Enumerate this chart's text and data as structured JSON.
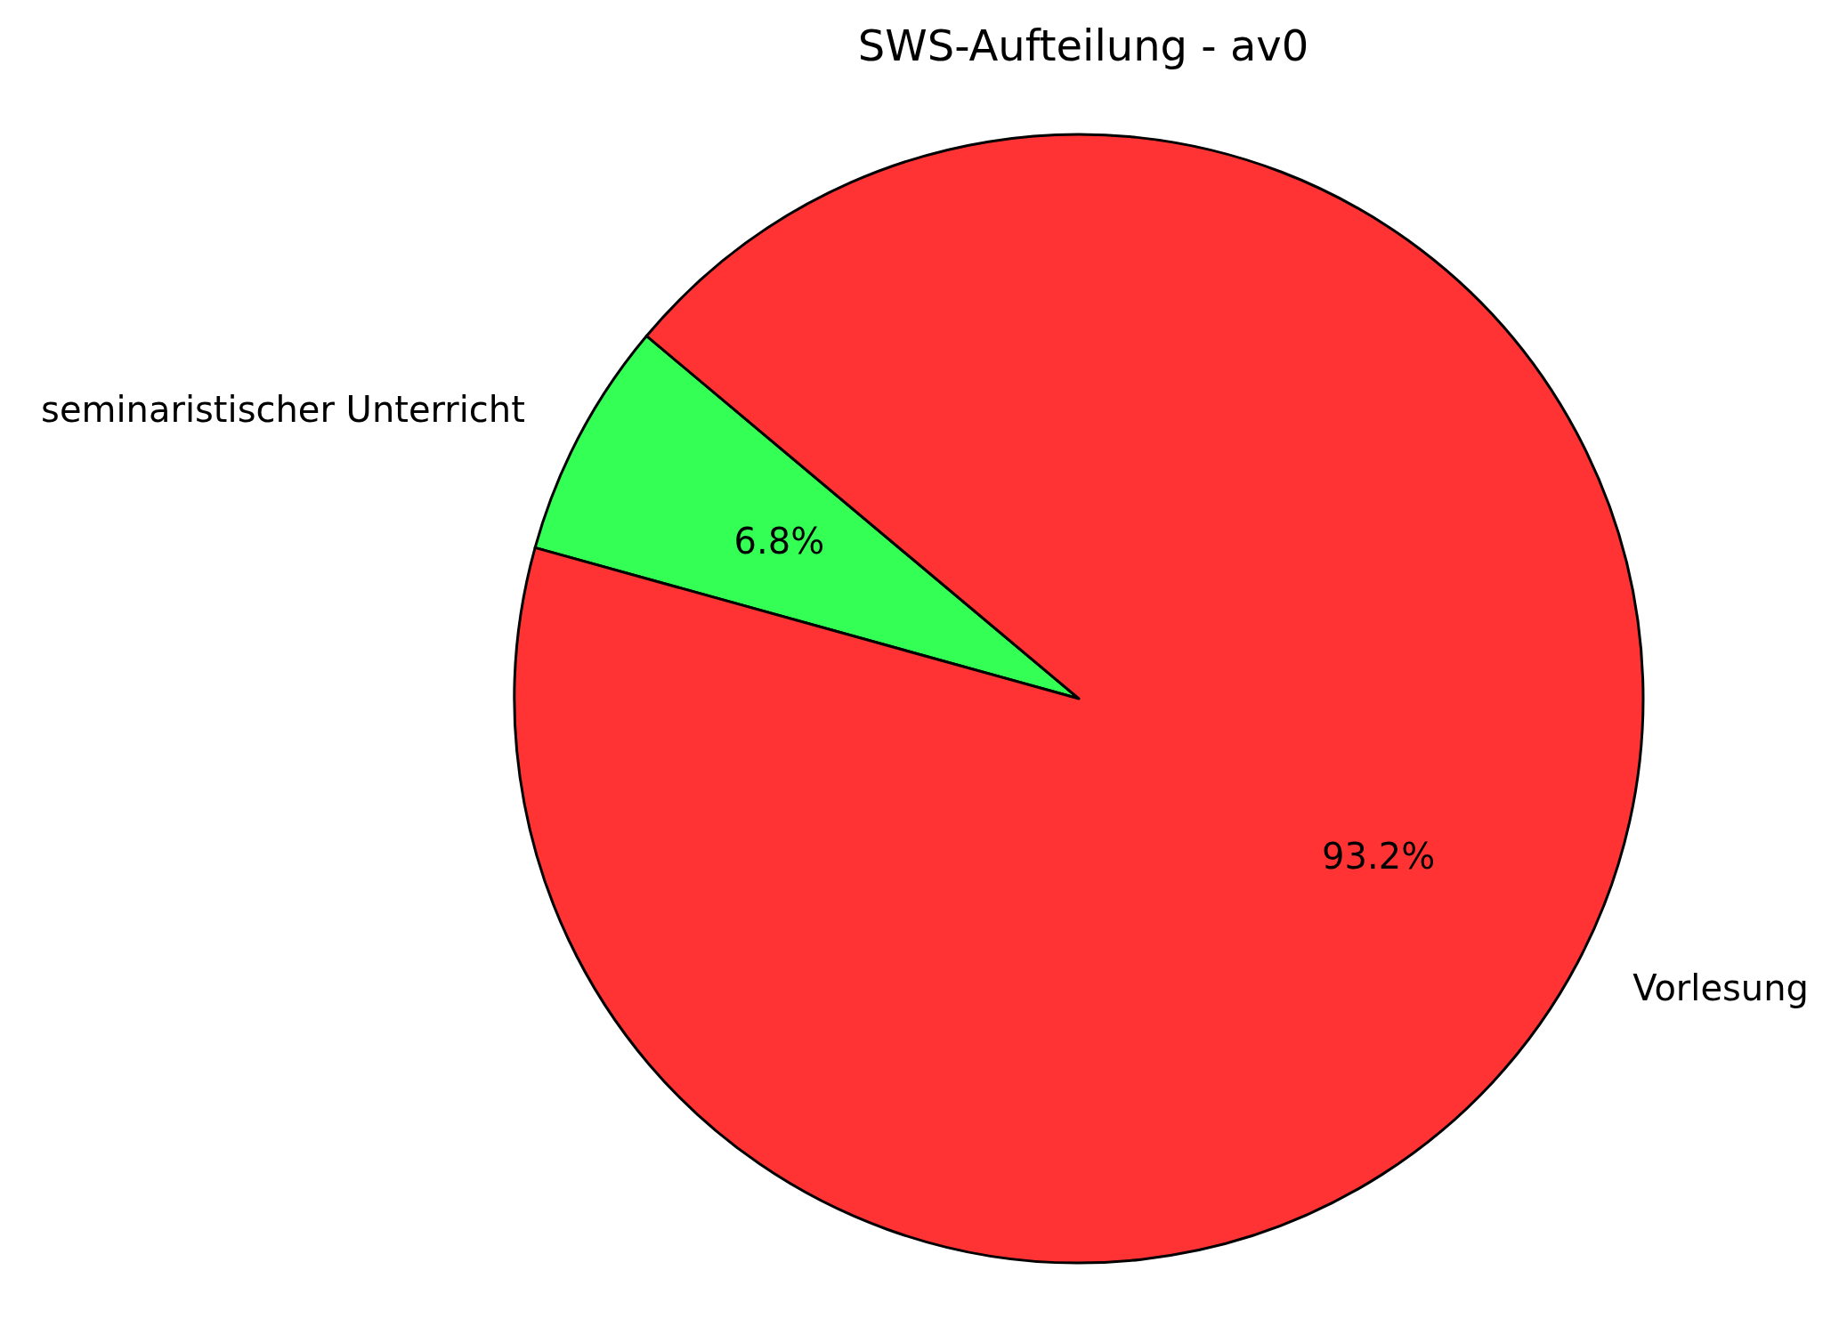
{
  "chart_data": {
    "type": "pie",
    "title": "SWS-Aufteilung - av0",
    "categories": [
      "seminaristischer Unterricht",
      "Vorlesung"
    ],
    "values": [
      6.8,
      93.2
    ],
    "colors": [
      "#33ff55",
      "#ff3333"
    ],
    "value_labels": [
      "6.8%",
      "93.2%"
    ]
  }
}
